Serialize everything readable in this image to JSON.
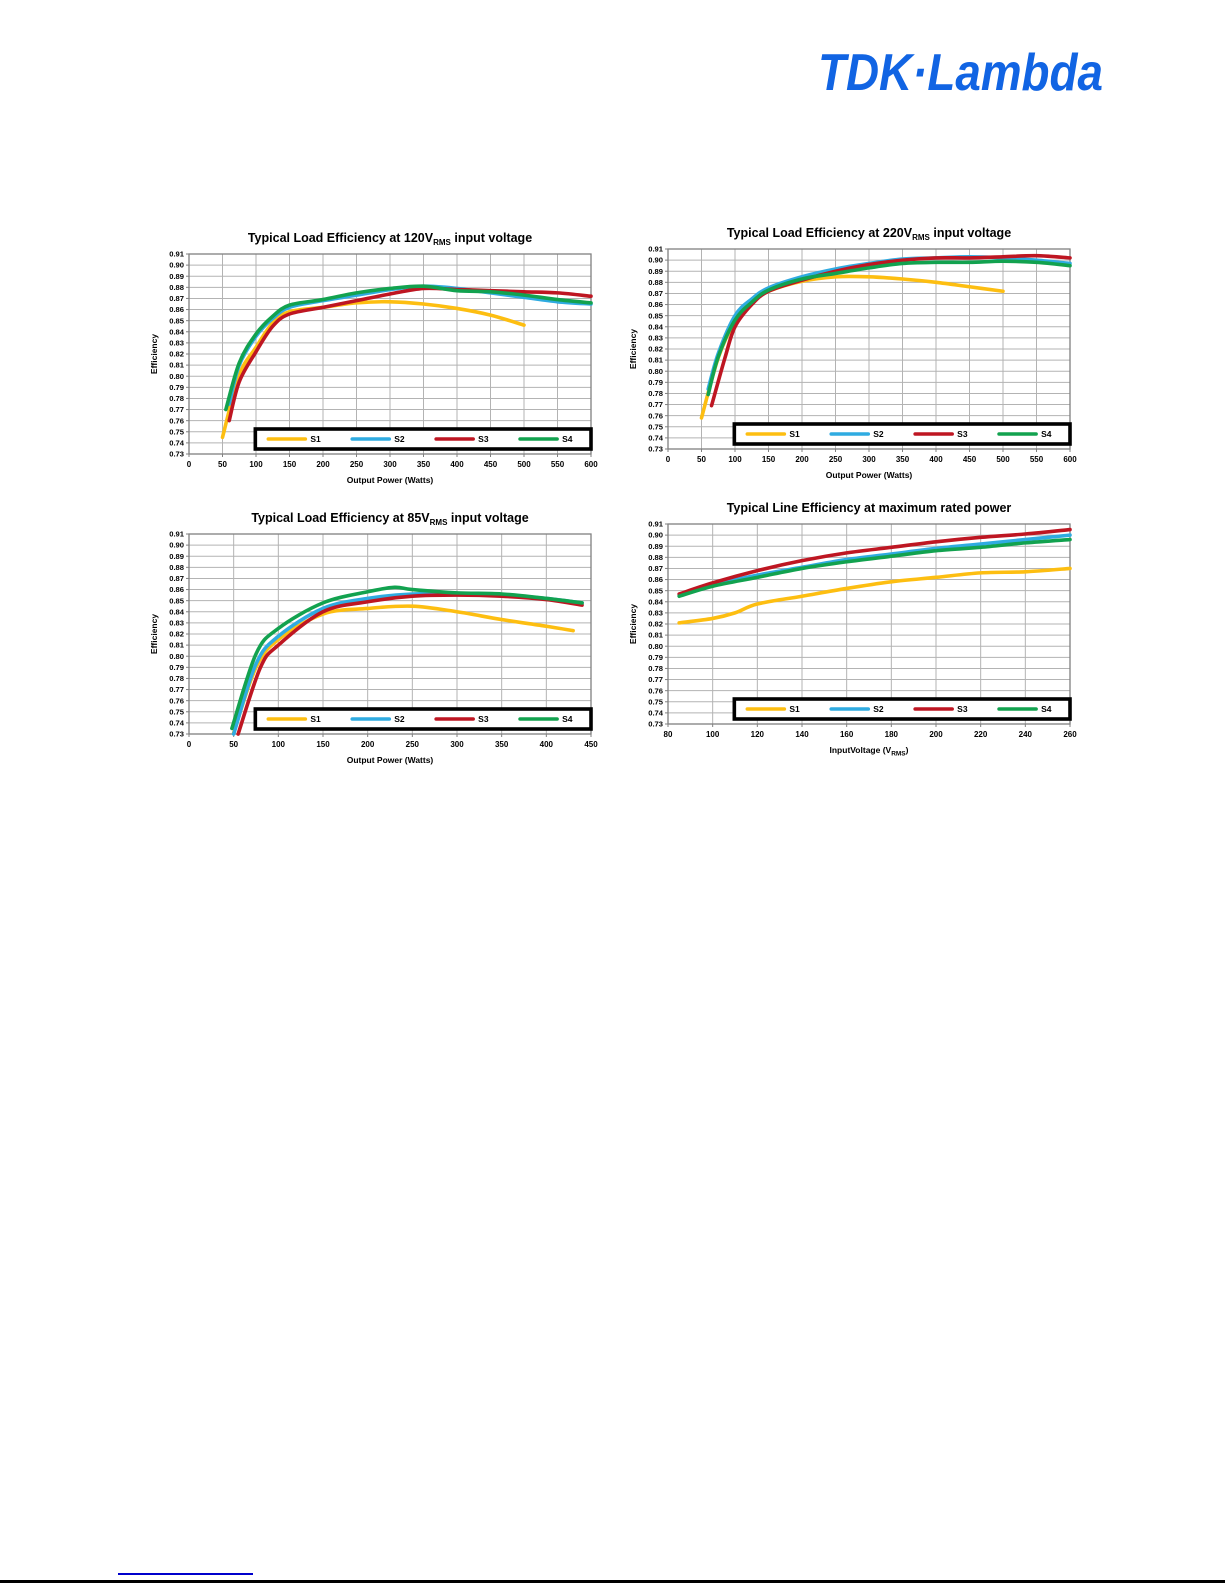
{
  "brand": {
    "logo_text": "TDK·Lambda",
    "logo_color": "#1164e3"
  },
  "colors": {
    "s1": "#FDBE11",
    "s2": "#2FABE1",
    "s3": "#BE1622",
    "s4": "#12A24F",
    "grid": "#b3b3b3",
    "axis": "#808080",
    "text": "#000000",
    "legend_border": "#000000",
    "legend_fill": "#ffffff"
  },
  "chart_data": [
    {
      "name": "load-efficiency-120v",
      "type": "line",
      "title": {
        "prefix": "Typical Load Efficiency at 120V",
        "sub": "RMS",
        "suffix": " input voltage"
      },
      "ylabel": "Efficiency",
      "xlabel": {
        "prefix": "Output Power (Watts)",
        "sub": "",
        "suffix": ""
      },
      "x_axis": {
        "min": 0,
        "max": 600,
        "ticks": [
          "0",
          "50",
          "100",
          "150",
          "200",
          "250",
          "300",
          "350",
          "400",
          "450",
          "500",
          "550",
          "600"
        ]
      },
      "y_axis": {
        "min": 0.73,
        "max": 0.91,
        "ticks": [
          "0.91",
          "0.90",
          "0.89",
          "0.88",
          "0.87",
          "0.86",
          "0.85",
          "0.84",
          "0.83",
          "0.82",
          "0.81",
          "0.80",
          "0.79",
          "0.78",
          "0.77",
          "0.76",
          "0.75",
          "0.74",
          "0.73"
        ]
      },
      "legend_position": "inside-bottom",
      "grid": true,
      "series": [
        {
          "name": "S1",
          "color": "s1",
          "points": [
            [
              50,
              0.745
            ],
            [
              75,
              0.801
            ],
            [
              100,
              0.826
            ],
            [
              125,
              0.848
            ],
            [
              150,
              0.858
            ],
            [
              200,
              0.862
            ],
            [
              250,
              0.866
            ],
            [
              300,
              0.867
            ],
            [
              350,
              0.865
            ],
            [
              400,
              0.861
            ],
            [
              450,
              0.855
            ],
            [
              500,
              0.846
            ]
          ]
        },
        {
          "name": "S2",
          "color": "s2",
          "points": [
            [
              60,
              0.775
            ],
            [
              75,
              0.81
            ],
            [
              100,
              0.836
            ],
            [
              125,
              0.852
            ],
            [
              150,
              0.862
            ],
            [
              200,
              0.868
            ],
            [
              250,
              0.873
            ],
            [
              300,
              0.878
            ],
            [
              350,
              0.881
            ],
            [
              400,
              0.879
            ],
            [
              450,
              0.875
            ],
            [
              500,
              0.871
            ],
            [
              550,
              0.867
            ],
            [
              600,
              0.865
            ]
          ]
        },
        {
          "name": "S3",
          "color": "s3",
          "points": [
            [
              60,
              0.76
            ],
            [
              75,
              0.795
            ],
            [
              100,
              0.822
            ],
            [
              125,
              0.845
            ],
            [
              150,
              0.856
            ],
            [
              200,
              0.862
            ],
            [
              250,
              0.868
            ],
            [
              300,
              0.874
            ],
            [
              350,
              0.879
            ],
            [
              400,
              0.878
            ],
            [
              450,
              0.877
            ],
            [
              500,
              0.876
            ],
            [
              550,
              0.875
            ],
            [
              600,
              0.872
            ]
          ]
        },
        {
          "name": "S4",
          "color": "s4",
          "points": [
            [
              55,
              0.77
            ],
            [
              75,
              0.812
            ],
            [
              100,
              0.838
            ],
            [
              125,
              0.854
            ],
            [
              150,
              0.864
            ],
            [
              200,
              0.869
            ],
            [
              250,
              0.875
            ],
            [
              300,
              0.879
            ],
            [
              350,
              0.881
            ],
            [
              400,
              0.877
            ],
            [
              450,
              0.876
            ],
            [
              500,
              0.873
            ],
            [
              550,
              0.869
            ],
            [
              600,
              0.866
            ]
          ]
        }
      ]
    },
    {
      "name": "load-efficiency-220v",
      "type": "line",
      "title": {
        "prefix": "Typical Load Efficiency at 220V",
        "sub": "RMS",
        "suffix": " input voltage"
      },
      "ylabel": "Efficiency",
      "xlabel": {
        "prefix": "Output Power (Watts)",
        "sub": "",
        "suffix": ""
      },
      "x_axis": {
        "min": 0,
        "max": 600,
        "ticks": [
          "0",
          "50",
          "100",
          "150",
          "200",
          "250",
          "300",
          "350",
          "400",
          "450",
          "500",
          "550",
          "600"
        ]
      },
      "y_axis": {
        "min": 0.73,
        "max": 0.91,
        "ticks": [
          "0.91",
          "0.90",
          "0.89",
          "0.88",
          "0.87",
          "0.86",
          "0.85",
          "0.84",
          "0.83",
          "0.82",
          "0.81",
          "0.80",
          "0.79",
          "0.78",
          "0.77",
          "0.76",
          "0.75",
          "0.74",
          "0.73"
        ]
      },
      "legend_position": "inside-bottom",
      "grid": true,
      "series": [
        {
          "name": "S1",
          "color": "s1",
          "points": [
            [
              50,
              0.758
            ],
            [
              75,
              0.812
            ],
            [
              100,
              0.845
            ],
            [
              125,
              0.862
            ],
            [
              150,
              0.872
            ],
            [
              200,
              0.881
            ],
            [
              250,
              0.885
            ],
            [
              300,
              0.885
            ],
            [
              350,
              0.883
            ],
            [
              400,
              0.88
            ],
            [
              450,
              0.876
            ],
            [
              500,
              0.872
            ]
          ]
        },
        {
          "name": "S2",
          "color": "s2",
          "points": [
            [
              60,
              0.784
            ],
            [
              75,
              0.816
            ],
            [
              100,
              0.85
            ],
            [
              125,
              0.865
            ],
            [
              150,
              0.875
            ],
            [
              200,
              0.885
            ],
            [
              250,
              0.892
            ],
            [
              300,
              0.897
            ],
            [
              350,
              0.901
            ],
            [
              400,
              0.902
            ],
            [
              450,
              0.903
            ],
            [
              500,
              0.902
            ],
            [
              550,
              0.9
            ],
            [
              600,
              0.897
            ]
          ]
        },
        {
          "name": "S3",
          "color": "s3",
          "points": [
            [
              65,
              0.769
            ],
            [
              85,
              0.812
            ],
            [
              100,
              0.84
            ],
            [
              125,
              0.86
            ],
            [
              150,
              0.872
            ],
            [
              200,
              0.882
            ],
            [
              250,
              0.89
            ],
            [
              300,
              0.896
            ],
            [
              350,
              0.9
            ],
            [
              400,
              0.902
            ],
            [
              450,
              0.902
            ],
            [
              500,
              0.903
            ],
            [
              550,
              0.904
            ],
            [
              600,
              0.902
            ]
          ]
        },
        {
          "name": "S4",
          "color": "s4",
          "points": [
            [
              60,
              0.779
            ],
            [
              75,
              0.813
            ],
            [
              100,
              0.846
            ],
            [
              125,
              0.862
            ],
            [
              150,
              0.873
            ],
            [
              200,
              0.883
            ],
            [
              250,
              0.888
            ],
            [
              300,
              0.893
            ],
            [
              350,
              0.897
            ],
            [
              400,
              0.898
            ],
            [
              450,
              0.898
            ],
            [
              500,
              0.899
            ],
            [
              550,
              0.898
            ],
            [
              600,
              0.895
            ]
          ]
        }
      ]
    },
    {
      "name": "load-efficiency-85v",
      "type": "line",
      "title": {
        "prefix": "Typical Load Efficiency at 85V",
        "sub": "RMS",
        "suffix": " input voltage"
      },
      "ylabel": "Efficiency",
      "xlabel": {
        "prefix": "Output Power (Watts)",
        "sub": "",
        "suffix": ""
      },
      "x_axis": {
        "min": 0,
        "max": 450,
        "ticks": [
          "0",
          "50",
          "100",
          "150",
          "200",
          "250",
          "300",
          "350",
          "400",
          "450"
        ]
      },
      "y_axis": {
        "min": 0.73,
        "max": 0.91,
        "ticks": [
          "0.91",
          "0.90",
          "0.89",
          "0.88",
          "0.87",
          "0.86",
          "0.85",
          "0.84",
          "0.83",
          "0.82",
          "0.81",
          "0.80",
          "0.79",
          "0.78",
          "0.77",
          "0.76",
          "0.75",
          "0.74",
          "0.73"
        ]
      },
      "legend_position": "inside-bottom",
      "grid": true,
      "series": [
        {
          "name": "S1",
          "color": "s1",
          "points": [
            [
              50,
              0.731
            ],
            [
              75,
              0.79
            ],
            [
              100,
              0.815
            ],
            [
              150,
              0.838
            ],
            [
              200,
              0.843
            ],
            [
              250,
              0.845
            ],
            [
              300,
              0.84
            ],
            [
              350,
              0.833
            ],
            [
              400,
              0.827
            ],
            [
              430,
              0.823
            ]
          ]
        },
        {
          "name": "S2",
          "color": "s2",
          "points": [
            [
              50,
              0.73
            ],
            [
              75,
              0.793
            ],
            [
              100,
              0.818
            ],
            [
              150,
              0.843
            ],
            [
              200,
              0.852
            ],
            [
              250,
              0.856
            ],
            [
              300,
              0.856
            ],
            [
              350,
              0.855
            ],
            [
              400,
              0.852
            ],
            [
              440,
              0.848
            ]
          ]
        },
        {
          "name": "S3",
          "color": "s3",
          "points": [
            [
              55,
              0.73
            ],
            [
              80,
              0.79
            ],
            [
              100,
              0.81
            ],
            [
              150,
              0.84
            ],
            [
              200,
              0.849
            ],
            [
              250,
              0.854
            ],
            [
              300,
              0.855
            ],
            [
              350,
              0.854
            ],
            [
              400,
              0.851
            ],
            [
              440,
              0.846
            ]
          ]
        },
        {
          "name": "S4",
          "color": "s4",
          "points": [
            [
              48,
              0.735
            ],
            [
              75,
              0.802
            ],
            [
              100,
              0.825
            ],
            [
              150,
              0.848
            ],
            [
              200,
              0.858
            ],
            [
              230,
              0.862
            ],
            [
              250,
              0.86
            ],
            [
              300,
              0.857
            ],
            [
              350,
              0.856
            ],
            [
              400,
              0.852
            ],
            [
              440,
              0.848
            ]
          ]
        }
      ]
    },
    {
      "name": "line-efficiency-max-power",
      "type": "line",
      "title": {
        "prefix": "Typical Line Efficiency at maximum rated power",
        "sub": "",
        "suffix": ""
      },
      "ylabel": "Efficiency",
      "xlabel": {
        "prefix": "InputVoltage (V",
        "sub": "RMS",
        "suffix": ")"
      },
      "x_axis": {
        "min": 80,
        "max": 260,
        "ticks": [
          "80",
          "100",
          "120",
          "140",
          "160",
          "180",
          "200",
          "220",
          "240",
          "260"
        ]
      },
      "y_axis": {
        "min": 0.73,
        "max": 0.91,
        "ticks": [
          "0.91",
          "0.90",
          "0.89",
          "0.88",
          "0.87",
          "0.86",
          "0.85",
          "0.84",
          "0.83",
          "0.82",
          "0.81",
          "0.80",
          "0.79",
          "0.78",
          "0.77",
          "0.76",
          "0.75",
          "0.74",
          "0.73"
        ]
      },
      "legend_position": "inside-bottom",
      "grid": true,
      "series": [
        {
          "name": "S1",
          "color": "s1",
          "points": [
            [
              85,
              0.821
            ],
            [
              100,
              0.825
            ],
            [
              110,
              0.83
            ],
            [
              120,
              0.838
            ],
            [
              140,
              0.845
            ],
            [
              160,
              0.852
            ],
            [
              180,
              0.858
            ],
            [
              200,
              0.862
            ],
            [
              220,
              0.866
            ],
            [
              240,
              0.867
            ],
            [
              260,
              0.87
            ]
          ]
        },
        {
          "name": "S2",
          "color": "s2",
          "points": [
            [
              85,
              0.846
            ],
            [
              100,
              0.855
            ],
            [
              120,
              0.864
            ],
            [
              140,
              0.871
            ],
            [
              160,
              0.878
            ],
            [
              180,
              0.883
            ],
            [
              200,
              0.888
            ],
            [
              220,
              0.892
            ],
            [
              240,
              0.896
            ],
            [
              260,
              0.9
            ]
          ]
        },
        {
          "name": "S3",
          "color": "s3",
          "points": [
            [
              85,
              0.847
            ],
            [
              100,
              0.857
            ],
            [
              120,
              0.868
            ],
            [
              140,
              0.877
            ],
            [
              160,
              0.884
            ],
            [
              180,
              0.889
            ],
            [
              200,
              0.894
            ],
            [
              220,
              0.898
            ],
            [
              240,
              0.901
            ],
            [
              260,
              0.905
            ]
          ]
        },
        {
          "name": "S4",
          "color": "s4",
          "points": [
            [
              85,
              0.845
            ],
            [
              100,
              0.854
            ],
            [
              120,
              0.862
            ],
            [
              140,
              0.87
            ],
            [
              160,
              0.876
            ],
            [
              180,
              0.881
            ],
            [
              200,
              0.886
            ],
            [
              220,
              0.889
            ],
            [
              240,
              0.893
            ],
            [
              260,
              0.896
            ]
          ]
        }
      ]
    }
  ]
}
